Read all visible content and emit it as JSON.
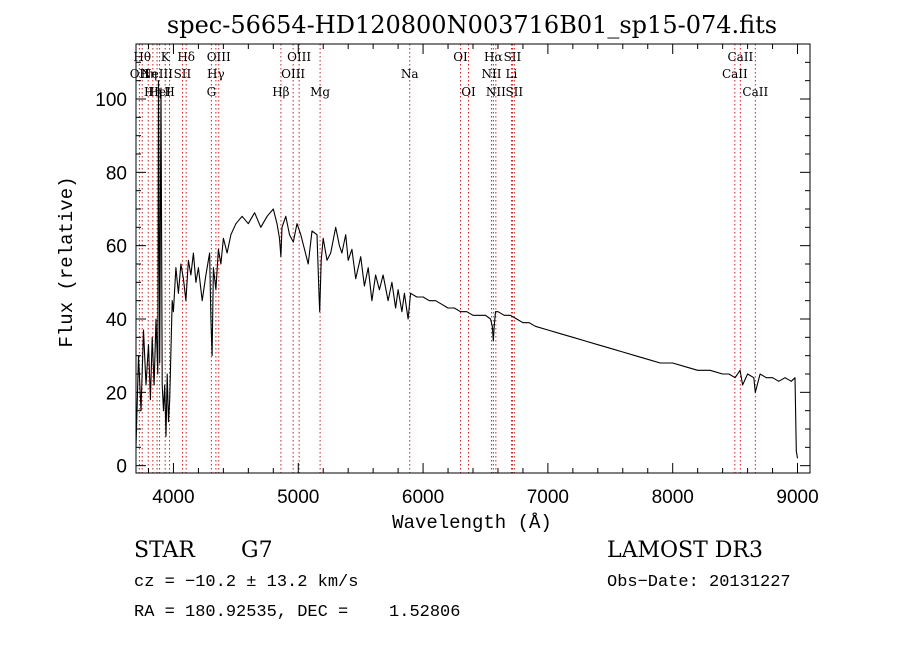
{
  "chart_data": {
    "type": "line",
    "title": "spec-56654-HD120800N003716B01_sp15-074.fits",
    "xlabel": "Wavelength (Å)",
    "ylabel": "Flux (relative)",
    "xlim": [
      3700,
      9100
    ],
    "ylim": [
      -2,
      115
    ],
    "xticks": [
      4000,
      5000,
      6000,
      7000,
      8000,
      9000
    ],
    "xtick_labels": [
      "4000",
      "5000",
      "6000",
      "7000",
      "8000",
      "9000"
    ],
    "yticks": [
      0,
      20,
      40,
      60,
      80,
      100
    ],
    "ytick_labels": [
      "0",
      "20",
      "40",
      "60",
      "80",
      "100"
    ],
    "x_minor_step": 200,
    "y_minor_step": 5,
    "grid": false,
    "series": [
      {
        "name": "flux",
        "color": "#000000",
        "x": [
          3700,
          3720,
          3740,
          3760,
          3780,
          3800,
          3815,
          3830,
          3845,
          3860,
          3875,
          3880,
          3890,
          3900,
          3910,
          3920,
          3930,
          3940,
          3950,
          3960,
          3970,
          3990,
          4000,
          4020,
          4040,
          4060,
          4080,
          4100,
          4120,
          4140,
          4160,
          4180,
          4200,
          4230,
          4260,
          4290,
          4300,
          4310,
          4320,
          4340,
          4360,
          4380,
          4400,
          4430,
          4460,
          4500,
          4550,
          4600,
          4650,
          4700,
          4750,
          4800,
          4830,
          4850,
          4861,
          4870,
          4900,
          4930,
          4960,
          4990,
          5020,
          5050,
          5080,
          5110,
          5150,
          5167,
          5172,
          5184,
          5200,
          5230,
          5260,
          5300,
          5330,
          5350,
          5380,
          5400,
          5430,
          5460,
          5500,
          5530,
          5560,
          5590,
          5620,
          5650,
          5680,
          5720,
          5750,
          5780,
          5800,
          5830,
          5850,
          5880,
          5900,
          5950,
          6000,
          6050,
          6100,
          6150,
          6200,
          6250,
          6300,
          6350,
          6400,
          6450,
          6500,
          6540,
          6555,
          6563,
          6570,
          6580,
          6600,
          6650,
          6700,
          6750,
          6800,
          6850,
          6900,
          7000,
          7100,
          7200,
          7300,
          7400,
          7500,
          7600,
          7700,
          7800,
          7900,
          8000,
          8100,
          8200,
          8300,
          8400,
          8450,
          8500,
          8540,
          8560,
          8600,
          8650,
          8662,
          8700,
          8750,
          8800,
          8850,
          8900,
          8950,
          8980,
          8990,
          9000
        ],
        "values": [
          5,
          30,
          15,
          37,
          22,
          33,
          18,
          35,
          22,
          40,
          25,
          105,
          28,
          103,
          22,
          15,
          22,
          8,
          25,
          12,
          18,
          45,
          42,
          54,
          47,
          55,
          51,
          45,
          56,
          52,
          58,
          50,
          54,
          45,
          52,
          58,
          40,
          30,
          54,
          48,
          59,
          55,
          62,
          58,
          63,
          66,
          68,
          66,
          69,
          65,
          68,
          70,
          66,
          62,
          57,
          65,
          68,
          63,
          61,
          66,
          63,
          59,
          55,
          64,
          63,
          46,
          42,
          56,
          62,
          56,
          58,
          65,
          60,
          58,
          63,
          56,
          59,
          51,
          57,
          49,
          54,
          45,
          52,
          48,
          52,
          45,
          50,
          43,
          48,
          42,
          47,
          40,
          47,
          46,
          46,
          45,
          45,
          44,
          43,
          43,
          42,
          42,
          41,
          41,
          41,
          40,
          38,
          34,
          38,
          42,
          42,
          41,
          41,
          40,
          39,
          39,
          38,
          37,
          36,
          35,
          34,
          33,
          32,
          31,
          30,
          29,
          28,
          28,
          27,
          26,
          26,
          25,
          25,
          24,
          26,
          22,
          25,
          24,
          20,
          25,
          24,
          24,
          23,
          24,
          23,
          24,
          4,
          2
        ]
      }
    ],
    "lines": [
      {
        "wl": 3727,
        "label": "OII",
        "row": 2
      },
      {
        "wl": 3750,
        "label": "Hθ",
        "row": 1
      },
      {
        "wl": 3798,
        "label": "Hη",
        "row": 2
      },
      {
        "wl": 3835,
        "label": "Hη",
        "row": 3
      },
      {
        "wl": 3869,
        "label": "NeIII",
        "row": 2
      },
      {
        "wl": 3889,
        "label": "HeI",
        "row": 3
      },
      {
        "wl": 3934,
        "label": "K",
        "row": 1
      },
      {
        "wl": 3969,
        "label": "H",
        "row": 3
      },
      {
        "wl": 4072,
        "label": "SII",
        "row": 2
      },
      {
        "wl": 4102,
        "label": "Hδ",
        "row": 1
      },
      {
        "wl": 4304,
        "label": "G",
        "row": 3
      },
      {
        "wl": 4340,
        "label": "Hγ",
        "row": 2
      },
      {
        "wl": 4363,
        "label": "OIII",
        "row": 1
      },
      {
        "wl": 4861,
        "label": "Hβ",
        "row": 3
      },
      {
        "wl": 4959,
        "label": "OIII",
        "row": 2
      },
      {
        "wl": 5007,
        "label": "OIII",
        "row": 1
      },
      {
        "wl": 5175,
        "label": "Mg",
        "row": 3
      },
      {
        "wl": 5893,
        "label": "Na",
        "row": 2
      },
      {
        "wl": 6300,
        "label": "OI",
        "row": 1
      },
      {
        "wl": 6364,
        "label": "OI",
        "row": 3
      },
      {
        "wl": 6548,
        "label": "NII",
        "row": 2
      },
      {
        "wl": 6563,
        "label": "Hα",
        "row": 1
      },
      {
        "wl": 6583,
        "label": "NII",
        "row": 3
      },
      {
        "wl": 6708,
        "label": "Li",
        "row": 2
      },
      {
        "wl": 6716,
        "label": "SII",
        "row": 1
      },
      {
        "wl": 6731,
        "label": "SII",
        "row": 3
      },
      {
        "wl": 8498,
        "label": "CaII",
        "row": 2
      },
      {
        "wl": 8542,
        "label": "CaII",
        "row": 1
      },
      {
        "wl": 8662,
        "label": "CaII",
        "row": 3
      }
    ]
  },
  "info": {
    "object_class": "STAR",
    "subclass": "G7",
    "survey": "LAMOST DR3",
    "redshift": "cz = −10.2 ± 13.2 km/s",
    "obs_date": "Obs−Date: 20131227",
    "coords": "RA = 180.92535, DEC =    1.52806"
  }
}
